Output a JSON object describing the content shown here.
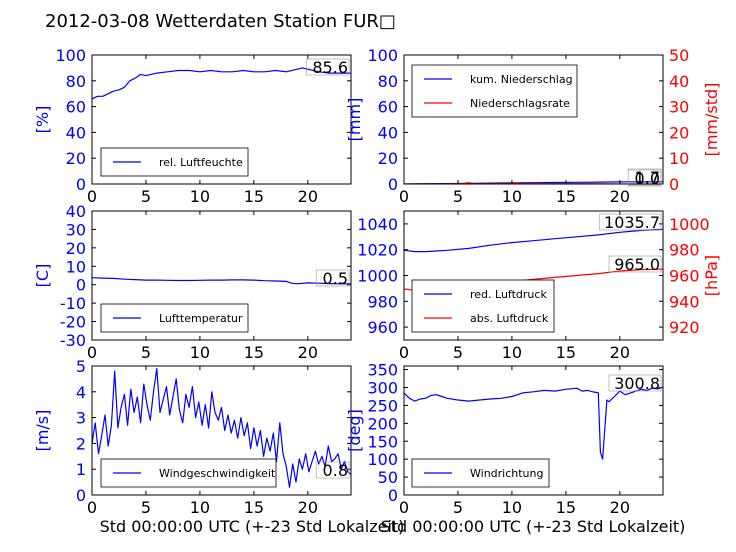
{
  "suptitle": "2012-03-08 Wetterdaten Station FUR□",
  "xlabel": "Std 00:00:00 UTC (+-23 Std Lokalzeit)",
  "colors": {
    "primary": "#0000ff",
    "secondary": "#ff0000",
    "axis": "#000000"
  },
  "chart_data": [
    {
      "type": "line",
      "ylabel": "[%]",
      "xlim": [
        0,
        24
      ],
      "ylim": [
        0,
        100
      ],
      "xticks": [
        0,
        5,
        10,
        15,
        20
      ],
      "yticks": [
        0,
        20,
        40,
        60,
        80,
        100
      ],
      "legend": {
        "placement": "lower-left",
        "entries": [
          "rel. Luftfeuchte"
        ]
      },
      "value_labels": [
        "85.6"
      ],
      "series": [
        {
          "name": "rel. Luftfeuchte",
          "color": "#0000ff",
          "x": [
            0,
            0.5,
            1,
            1.5,
            2,
            2.5,
            3,
            3.5,
            4,
            4.5,
            5,
            6,
            7,
            8,
            9,
            10,
            11,
            12,
            13,
            14,
            15,
            16,
            17,
            18,
            19,
            19.5,
            20,
            21,
            22,
            23,
            24
          ],
          "y": [
            66,
            68,
            68,
            70,
            72,
            73,
            75,
            80,
            82,
            85,
            84,
            86,
            87,
            88,
            88,
            87,
            88,
            87,
            87,
            88,
            87,
            87,
            88,
            87,
            89,
            90,
            89,
            87,
            86,
            86,
            86
          ]
        }
      ]
    },
    {
      "type": "line",
      "ylabel": "[mm]",
      "ylabel_right": "[mm/std]",
      "xlim": [
        0,
        24
      ],
      "ylim": [
        0,
        100
      ],
      "ylim_right": [
        0,
        50
      ],
      "xticks": [
        0,
        5,
        10,
        15,
        20
      ],
      "yticks": [
        0,
        20,
        40,
        60,
        80,
        100
      ],
      "yticks_right": [
        0,
        10,
        20,
        30,
        40,
        50
      ],
      "legend": {
        "placement": "upper-left",
        "entries": [
          "kum. Niederschlag",
          "Niederschlagsrate"
        ]
      },
      "value_labels": [
        "1.7",
        "0.0"
      ],
      "series": [
        {
          "name": "kum. Niederschlag",
          "color": "#0000ff",
          "axis": "left",
          "x": [
            0,
            2,
            4,
            6,
            8,
            10,
            12,
            14,
            16,
            18,
            20,
            22,
            24
          ],
          "y": [
            0,
            0.2,
            0.3,
            0.5,
            0.7,
            0.9,
            1.0,
            1.2,
            1.3,
            1.5,
            1.6,
            1.7,
            1.7
          ]
        },
        {
          "name": "Niederschlagsrate",
          "color": "#ff0000",
          "axis": "right",
          "x": [
            0,
            4,
            5.5,
            6,
            6.5,
            8,
            10,
            10.5,
            11,
            13,
            15,
            17,
            20,
            24
          ],
          "y": [
            0,
            0,
            0.2,
            0.5,
            0.1,
            0.1,
            0.2,
            0.5,
            0.1,
            0.1,
            0.1,
            0.1,
            0,
            0
          ]
        }
      ]
    },
    {
      "type": "line",
      "ylabel": "[C]",
      "xlim": [
        0,
        24
      ],
      "ylim": [
        -30,
        40
      ],
      "xticks": [
        0,
        5,
        10,
        15,
        20
      ],
      "yticks": [
        -30,
        -20,
        -10,
        0,
        10,
        20,
        30,
        40
      ],
      "legend": {
        "placement": "lower-left",
        "entries": [
          "Lufttemperatur"
        ]
      },
      "value_labels": [
        "0.5"
      ],
      "series": [
        {
          "name": "Lufttemperatur",
          "color": "#0000ff",
          "x": [
            0,
            1,
            2,
            3,
            4,
            5,
            6,
            7,
            8,
            9,
            10,
            11,
            12,
            13,
            14,
            15,
            16,
            17,
            18,
            18.5,
            19,
            20,
            21,
            22,
            23,
            24
          ],
          "y": [
            3.8,
            3.6,
            3.4,
            3.0,
            2.8,
            2.5,
            2.5,
            2.4,
            2.3,
            2.3,
            2.4,
            2.5,
            2.5,
            2.6,
            2.6,
            2.5,
            2.2,
            2.0,
            1.8,
            0.8,
            0.5,
            1.0,
            0.8,
            0.6,
            0.5,
            0.5
          ]
        }
      ]
    },
    {
      "type": "line",
      "ylabel_right": "[hPa]",
      "xlim": [
        0,
        24
      ],
      "ylim": [
        950,
        1050
      ],
      "ylim_right": [
        910,
        1010
      ],
      "xticks": [
        0,
        5,
        10,
        15,
        20
      ],
      "yticks": [
        960,
        980,
        1000,
        1020,
        1040
      ],
      "yticks_right": [
        920,
        940,
        960,
        980,
        1000
      ],
      "legend": {
        "placement": "lower-left",
        "entries": [
          "red. Luftdruck",
          "abs. Luftdruck"
        ]
      },
      "value_labels": [
        "1035.7",
        "965.0"
      ],
      "series": [
        {
          "name": "red. Luftdruck",
          "color": "#0000ff",
          "axis": "left",
          "x": [
            0,
            1,
            2,
            3,
            4,
            6,
            8,
            10,
            12,
            14,
            16,
            18,
            20,
            22,
            24
          ],
          "y": [
            1019.5,
            1018.5,
            1018.5,
            1019,
            1019.5,
            1021,
            1023.5,
            1025.5,
            1027,
            1028.5,
            1030,
            1031.5,
            1033.5,
            1035,
            1035.7
          ]
        },
        {
          "name": "abs. Luftdruck",
          "color": "#ff0000",
          "axis": "right",
          "x": [
            0,
            1,
            2,
            3,
            4,
            6,
            8,
            10,
            12,
            14,
            16,
            18,
            20,
            22,
            24
          ],
          "y": [
            949.5,
            948.5,
            948.5,
            949,
            949.5,
            951,
            953.5,
            955.5,
            957,
            958.5,
            960,
            961.5,
            963.5,
            964.5,
            965.0
          ]
        }
      ]
    },
    {
      "type": "line",
      "ylabel": "[m/s]",
      "xlim": [
        0,
        24
      ],
      "ylim": [
        0,
        5
      ],
      "xticks": [
        0,
        5,
        10,
        15,
        20
      ],
      "yticks": [
        0,
        1,
        2,
        3,
        4,
        5
      ],
      "legend": {
        "placement": "lower-left",
        "entries": [
          "Windgeschwindigkeit"
        ]
      },
      "value_labels": [
        "0.8"
      ],
      "series": [
        {
          "name": "Windgeschwindigkeit",
          "color": "#0000ff",
          "x": [
            0,
            0.3,
            0.6,
            0.9,
            1.2,
            1.5,
            1.8,
            2.1,
            2.4,
            2.7,
            3.0,
            3.3,
            3.6,
            3.9,
            4.2,
            4.5,
            4.8,
            5.1,
            5.4,
            5.7,
            6.0,
            6.3,
            6.6,
            6.9,
            7.2,
            7.5,
            7.8,
            8.1,
            8.4,
            8.7,
            9.0,
            9.3,
            9.6,
            9.9,
            10.2,
            10.5,
            10.8,
            11.1,
            11.4,
            11.7,
            12.0,
            12.3,
            12.6,
            12.9,
            13.2,
            13.5,
            13.8,
            14.1,
            14.4,
            14.7,
            15.0,
            15.3,
            15.6,
            15.9,
            16.2,
            16.5,
            16.8,
            17.1,
            17.4,
            17.7,
            18.0,
            18.3,
            18.6,
            18.9,
            19.2,
            19.5,
            19.8,
            20.1,
            20.4,
            20.7,
            21.0,
            21.3,
            21.6,
            21.9,
            22.2,
            22.5,
            22.8,
            23.1,
            23.4,
            23.7,
            24.0
          ],
          "y": [
            2.0,
            2.8,
            1.6,
            2.3,
            3.1,
            1.9,
            2.7,
            4.8,
            2.6,
            3.4,
            3.9,
            2.7,
            4.1,
            3.2,
            3.8,
            2.8,
            4.3,
            3.5,
            2.9,
            4.0,
            4.9,
            3.2,
            3.7,
            4.2,
            3.1,
            3.8,
            4.5,
            3.3,
            2.8,
            3.9,
            3.4,
            4.2,
            3.0,
            3.6,
            2.7,
            3.5,
            2.6,
            4.0,
            3.2,
            2.9,
            3.4,
            2.5,
            3.1,
            2.4,
            2.9,
            2.2,
            3.0,
            2.3,
            2.8,
            1.8,
            2.6,
            1.9,
            2.5,
            1.5,
            2.2,
            1.7,
            2.4,
            1.3,
            2.8,
            1.6,
            1.1,
            0.3,
            1.2,
            0.5,
            1.4,
            1.0,
            1.6,
            0.9,
            1.3,
            1.7,
            1.2,
            1.5,
            1.1,
            1.9,
            1.3,
            1.4,
            1.6,
            1.0,
            1.3,
            0.9,
            0.8
          ]
        }
      ]
    },
    {
      "type": "line",
      "ylabel": "[deg]",
      "xlim": [
        0,
        24
      ],
      "ylim": [
        0,
        360
      ],
      "xticks": [
        0,
        5,
        10,
        15,
        20
      ],
      "yticks": [
        0,
        50,
        100,
        150,
        200,
        250,
        300,
        350
      ],
      "legend": {
        "placement": "lower-left",
        "entries": [
          "Windrichtung"
        ]
      },
      "value_labels": [
        "300.8"
      ],
      "series": [
        {
          "name": "Windrichtung",
          "color": "#0000ff",
          "x": [
            0,
            0.5,
            1,
            1.5,
            2,
            2.5,
            3,
            3.5,
            4,
            5,
            6,
            7,
            8,
            9,
            10,
            11,
            12,
            13,
            14,
            15,
            16,
            16.5,
            17,
            17.5,
            18,
            18.2,
            18.4,
            18.6,
            18.8,
            19,
            19.5,
            20,
            20.5,
            21,
            21.5,
            22,
            22.5,
            23,
            23.5,
            24
          ],
          "y": [
            285,
            270,
            262,
            268,
            270,
            278,
            280,
            275,
            270,
            265,
            262,
            265,
            268,
            270,
            275,
            285,
            288,
            292,
            290,
            295,
            298,
            290,
            292,
            288,
            285,
            120,
            100,
            180,
            265,
            260,
            275,
            290,
            280,
            285,
            290,
            295,
            292,
            298,
            296,
            301
          ]
        }
      ]
    }
  ]
}
